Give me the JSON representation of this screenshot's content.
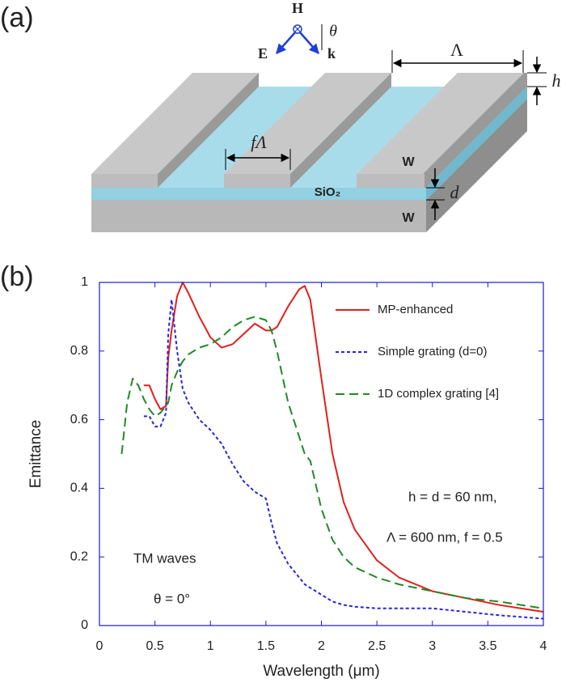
{
  "figure": {
    "panel_labels": [
      "(a)",
      "(b)"
    ],
    "diagram": {
      "field_h": "H",
      "angle": "θ",
      "field_e": "E",
      "wavevector": "k",
      "period": "Λ",
      "height": "h",
      "width": "fΛ",
      "top_metal": "W",
      "spacer": "SiO₂",
      "spacer_thickness": "d",
      "substrate": "W"
    }
  },
  "chart_data": {
    "type": "line",
    "xlabel": "Wavelength (μm)",
    "ylabel": "Emittance",
    "xlim": [
      0,
      4
    ],
    "ylim": [
      0,
      1
    ],
    "xticks": [
      0,
      0.5,
      1,
      1.5,
      2,
      2.5,
      3,
      3.5,
      4
    ],
    "yticks": [
      0,
      0.2,
      0.4,
      0.6,
      0.8,
      1
    ],
    "legend": "upper right",
    "annotations": [
      "h = d = 60 nm,",
      "Λ = 600 nm, f = 0.5",
      "TM waves",
      "θ = 0°"
    ],
    "x": [
      0.2,
      0.25,
      0.3,
      0.35,
      0.4,
      0.45,
      0.5,
      0.55,
      0.6,
      0.62,
      0.65,
      0.7,
      0.75,
      0.8,
      0.9,
      1.0,
      1.1,
      1.2,
      1.3,
      1.4,
      1.5,
      1.55,
      1.6,
      1.7,
      1.8,
      1.85,
      1.9,
      2.0,
      2.1,
      2.2,
      2.3,
      2.5,
      2.7,
      3.0,
      3.3,
      3.6,
      4.0
    ],
    "series": [
      {
        "name": "MP-enhanced",
        "color": "#e0201e",
        "linestyle": "solid",
        "values": [
          null,
          null,
          null,
          null,
          0.7,
          0.7,
          0.66,
          0.63,
          0.64,
          0.78,
          0.86,
          0.96,
          1.0,
          0.97,
          0.9,
          0.84,
          0.81,
          0.82,
          0.85,
          0.88,
          0.86,
          0.86,
          0.87,
          0.93,
          0.98,
          0.99,
          0.95,
          0.72,
          0.5,
          0.36,
          0.28,
          0.19,
          0.14,
          0.1,
          0.08,
          0.06,
          0.04
        ]
      },
      {
        "name": "Simple grating (d=0)",
        "color": "#2626d9",
        "linestyle": "dotted",
        "values": [
          null,
          null,
          null,
          null,
          0.61,
          0.61,
          0.58,
          0.58,
          0.62,
          0.85,
          0.95,
          0.8,
          0.69,
          0.65,
          0.6,
          0.57,
          0.53,
          0.47,
          0.42,
          0.39,
          0.37,
          0.3,
          0.24,
          0.18,
          0.14,
          0.12,
          0.11,
          0.09,
          0.07,
          0.06,
          0.055,
          0.05,
          0.05,
          0.05,
          0.04,
          0.03,
          0.02
        ]
      },
      {
        "name": "1D complex grating [4]",
        "color": "#1f8a24",
        "linestyle": "dashed",
        "values": [
          0.5,
          0.65,
          0.72,
          0.7,
          0.66,
          0.63,
          0.61,
          0.62,
          0.64,
          0.65,
          0.7,
          0.74,
          0.77,
          0.79,
          0.81,
          0.82,
          0.84,
          0.87,
          0.89,
          0.9,
          0.89,
          0.86,
          0.8,
          0.65,
          0.55,
          0.5,
          0.48,
          0.34,
          0.25,
          0.2,
          0.17,
          0.14,
          0.12,
          0.1,
          0.08,
          0.07,
          0.05
        ]
      }
    ]
  }
}
